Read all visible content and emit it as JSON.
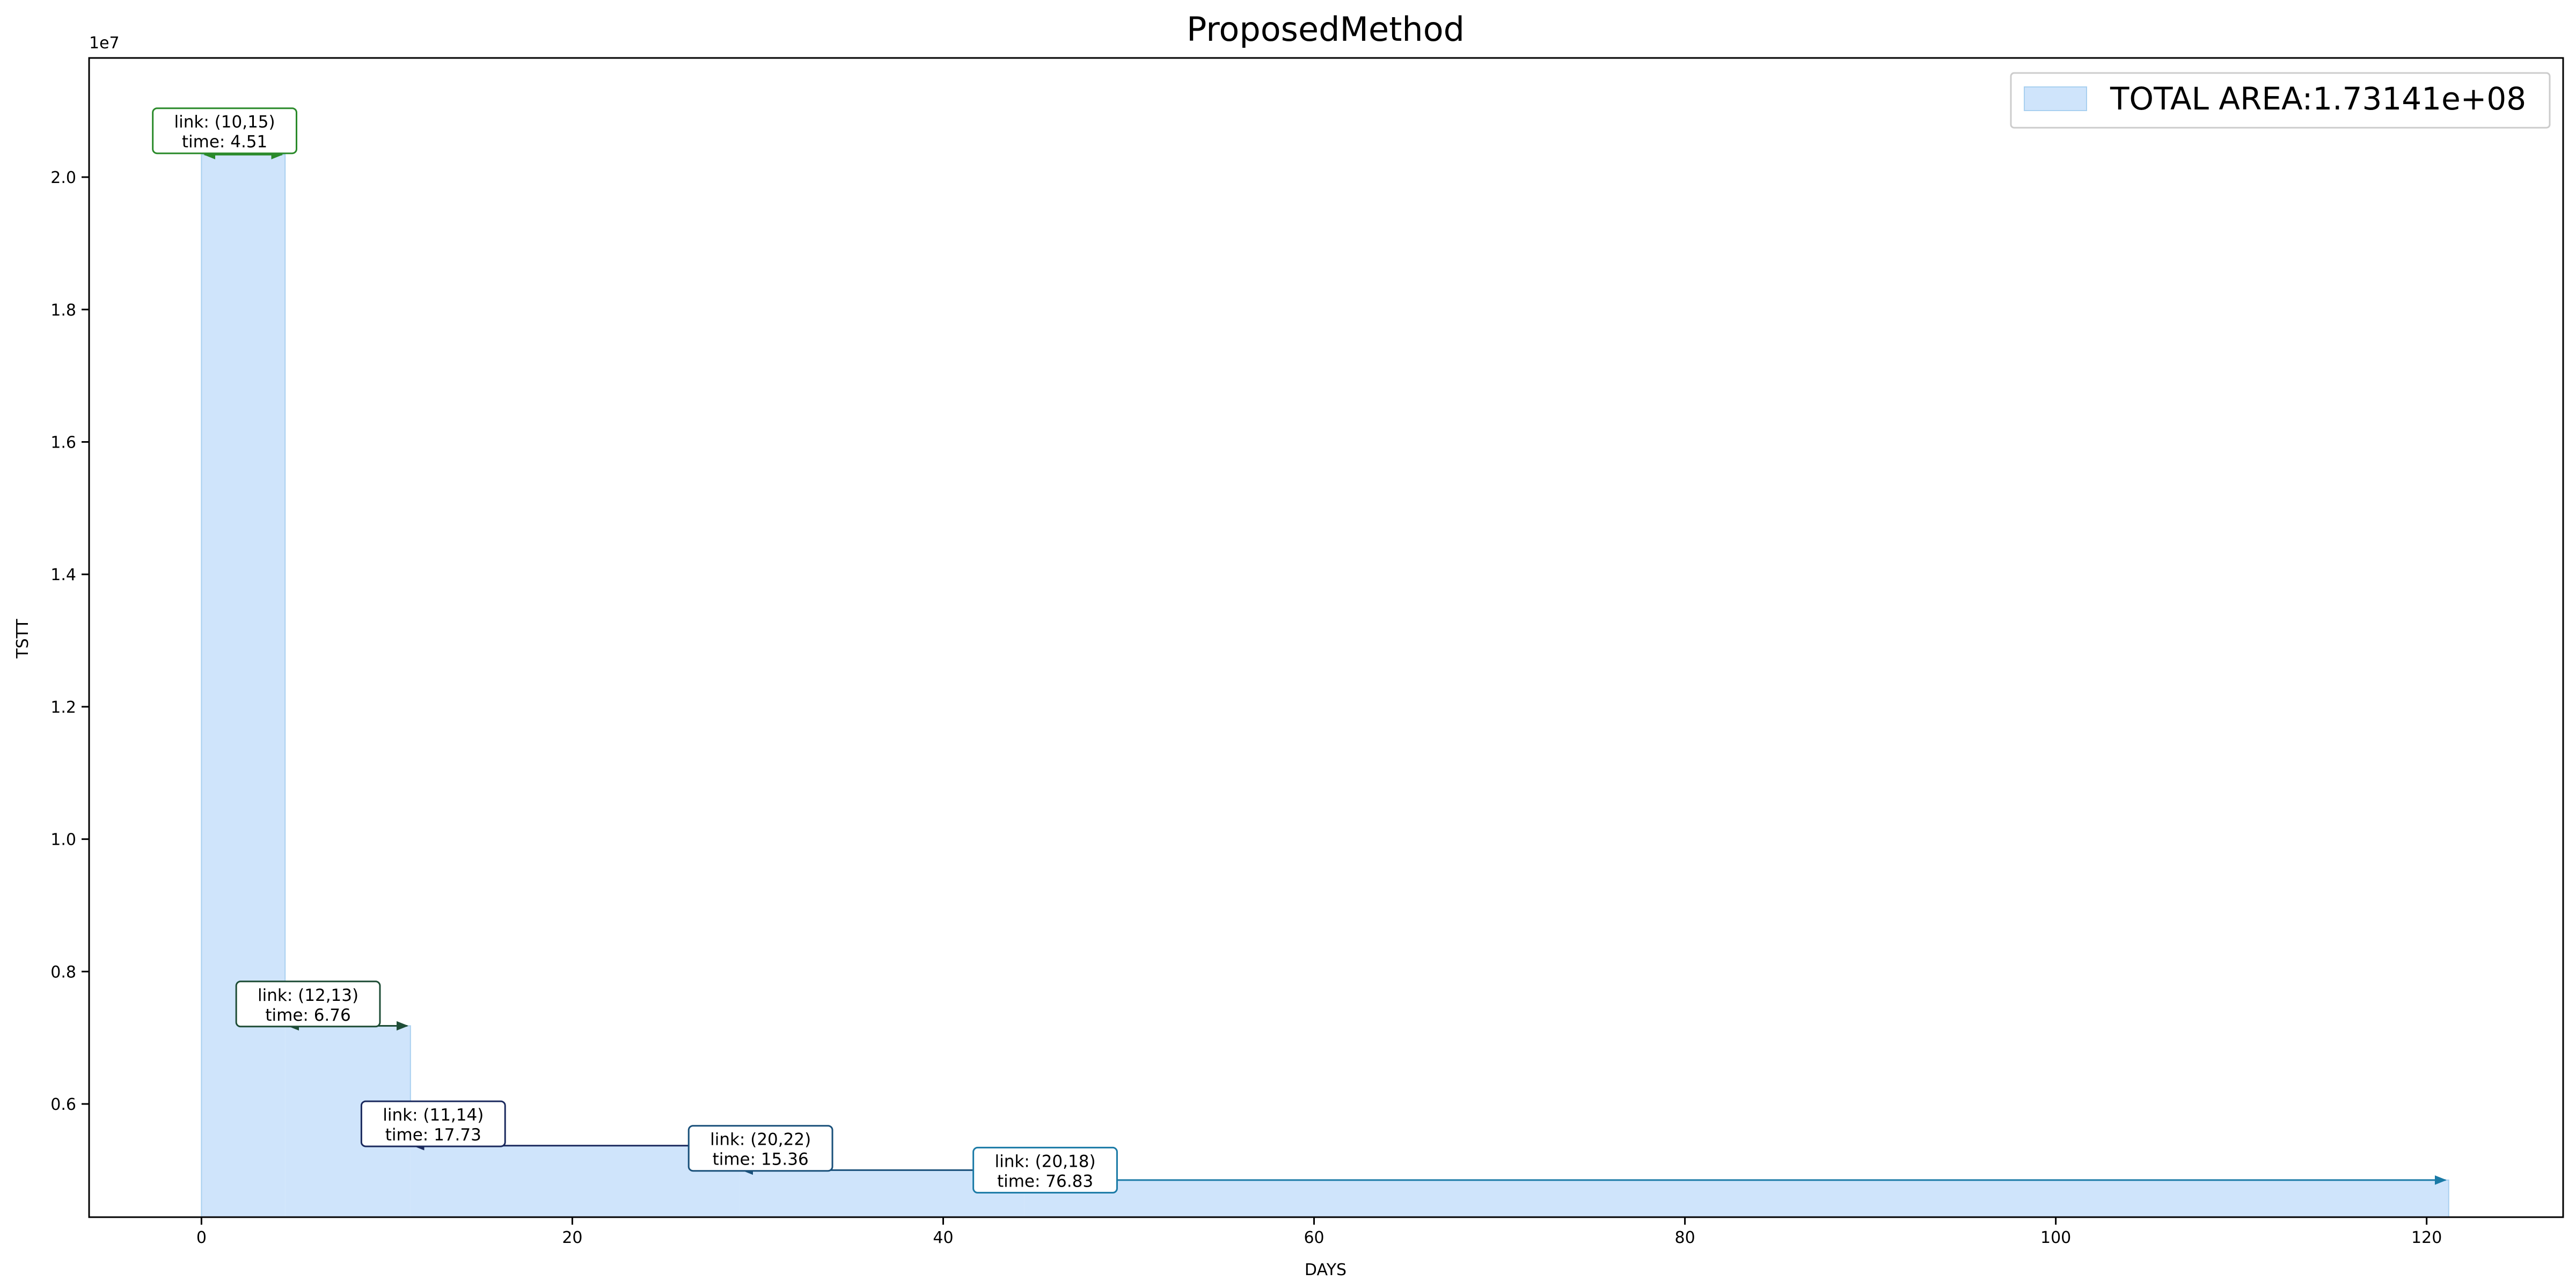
{
  "chart_data": {
    "type": "area",
    "title": "ProposedMethod",
    "xlabel": "DAYS",
    "ylabel": "TSTT",
    "y_offset_text": "1e7",
    "xlim": [
      -6.06,
      127.36
    ],
    "ylim": [
      4290000,
      21800000
    ],
    "xticks": [
      0,
      20,
      40,
      60,
      80,
      100,
      120
    ],
    "xtick_labels": [
      "0",
      "20",
      "40",
      "60",
      "80",
      "100",
      "120"
    ],
    "yticks": [
      6000000,
      8000000,
      10000000,
      12000000,
      14000000,
      16000000,
      18000000,
      20000000
    ],
    "ytick_labels": [
      "0.6",
      "0.8",
      "1.0",
      "1.2",
      "1.4",
      "1.6",
      "1.8",
      "2.0"
    ],
    "grid": false,
    "legend": {
      "label": "TOTAL AREA:1.73141e+08",
      "placement": "upper right",
      "color": "#cfe4fb"
    },
    "fill_color": "#cfe4fb",
    "edge_color": "#a9d0f0",
    "steps": [
      {
        "x_start": 0,
        "x_end": 4.51,
        "y": 20340000
      },
      {
        "x_start": 4.51,
        "x_end": 11.27,
        "y": 7180000
      },
      {
        "x_start": 11.27,
        "x_end": 29.0,
        "y": 5370000
      },
      {
        "x_start": 29.0,
        "x_end": 44.36,
        "y": 5000000
      },
      {
        "x_start": 44.36,
        "x_end": 121.19,
        "y": 4850000
      }
    ],
    "annotations": [
      {
        "link_text": "link: (10,15)",
        "time_text": "time: 4.51",
        "x_start": 0,
        "x_end": 4.51,
        "y": 20340000,
        "label_x": 1.25,
        "label_y": 20700000,
        "color": "#2a8a2a"
      },
      {
        "link_text": "link: (12,13)",
        "time_text": "time: 6.76",
        "x_start": 4.51,
        "x_end": 11.27,
        "y": 7180000,
        "label_x": 5.75,
        "label_y": 7510000,
        "color": "#1e4d36"
      },
      {
        "link_text": "link: (11,14)",
        "time_text": "time: 17.73",
        "x_start": 11.27,
        "x_end": 29.0,
        "y": 5370000,
        "label_x": 12.5,
        "label_y": 5700000,
        "color": "#1b2a5e"
      },
      {
        "link_text": "link: (20,22)",
        "time_text": "time: 15.36",
        "x_start": 29.0,
        "x_end": 44.36,
        "y": 5000000,
        "label_x": 30.15,
        "label_y": 5330000,
        "color": "#19507a"
      },
      {
        "link_text": "link: (20,18)",
        "time_text": "time: 76.83",
        "x_start": 44.36,
        "x_end": 121.19,
        "y": 4850000,
        "label_x": 45.5,
        "label_y": 5000000,
        "color": "#1a7aa6"
      }
    ]
  }
}
